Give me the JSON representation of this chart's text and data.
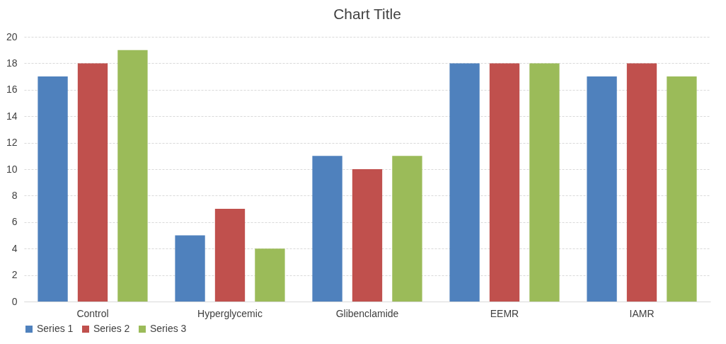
{
  "chart_data": {
    "type": "bar",
    "title": "Chart Title",
    "categories": [
      "Control",
      "Hyperglycemic",
      "Glibenclamide",
      "EEMR",
      "IAMR"
    ],
    "series": [
      {
        "name": "Series 1",
        "color": "#4f81bd",
        "values": [
          17,
          5,
          11,
          18,
          17
        ]
      },
      {
        "name": "Series 2",
        "color": "#c0504d",
        "values": [
          18,
          7,
          10,
          18,
          18
        ]
      },
      {
        "name": "Series 3",
        "color": "#9bbb59",
        "values": [
          19,
          4,
          11,
          18,
          17
        ]
      }
    ],
    "ylim": [
      0,
      20
    ],
    "yticks": [
      0,
      2,
      4,
      6,
      8,
      10,
      12,
      14,
      16,
      18,
      20
    ],
    "grid": "y",
    "legend": "bottom"
  }
}
